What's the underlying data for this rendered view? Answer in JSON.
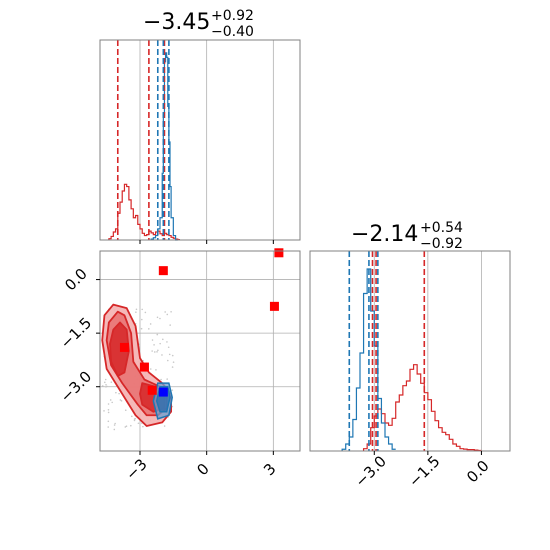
{
  "colors": {
    "red": "#d62728",
    "blue": "#1f77b4",
    "red_fill": "#f0a0a0",
    "marker_red": "#ff0000",
    "marker_blue": "#0000ff",
    "grid": "#b0b0b0"
  },
  "chart_data": {
    "type": "corner",
    "titles": [
      {
        "param": 0,
        "median": "−3.45",
        "plus": "+0.92",
        "minus": "−0.40"
      },
      {
        "param": 1,
        "median": "−2.14",
        "plus": "+0.54",
        "minus": "−0.92"
      }
    ],
    "x_range": [
      -4.8,
      4.2
    ],
    "y_range": [
      -4.8,
      0.8
    ],
    "x_ticks": [
      {
        "value": -3,
        "label": "−3"
      },
      {
        "value": 0,
        "label": "0"
      },
      {
        "value": 3,
        "label": "3"
      }
    ],
    "y_ticks": [
      {
        "value": 0,
        "label": "0.0"
      },
      {
        "value": -1.5,
        "label": "−1.5"
      },
      {
        "value": -3,
        "label": "−3.0"
      }
    ],
    "y_marginal_ticks": [
      {
        "value": -3,
        "label": "−3.0"
      },
      {
        "value": -1.5,
        "label": "−1.5"
      },
      {
        "value": 0,
        "label": "0.0"
      }
    ],
    "grid": true,
    "marginal_x": {
      "red_hist": {
        "bins": [
          -4.4,
          -4.3,
          -4.2,
          -4.1,
          -4.0,
          -3.9,
          -3.8,
          -3.7,
          -3.6,
          -3.5,
          -3.4,
          -3.3,
          -3.2,
          -3.1,
          -3.0,
          -2.9,
          -2.8,
          -2.7,
          -2.6,
          -2.5,
          -2.4,
          -2.3,
          -2.2,
          -2.1,
          -2.0,
          -1.9,
          -1.8,
          -1.7,
          -1.6,
          -1.5,
          -1.4,
          -1.3
        ],
        "counts": [
          0.3,
          0.8,
          1.8,
          2.5,
          6.0,
          8.5,
          11.0,
          12.5,
          12.0,
          9.0,
          7.0,
          5.0,
          5.5,
          3.5,
          2.5,
          1.5,
          1.0,
          1.2,
          2.0,
          1.6,
          1.2,
          1.8,
          2.0,
          1.4,
          1.0,
          1.5,
          1.2,
          1.0,
          0.6,
          0.4,
          0.2,
          0.1
        ]
      },
      "blue_hist": {
        "bins": [
          -2.5,
          -2.4,
          -2.3,
          -2.2,
          -2.1,
          -2.0,
          -1.95,
          -1.9,
          -1.85,
          -1.8,
          -1.75,
          -1.7,
          -1.65,
          -1.6,
          -1.5,
          -1.4
        ],
        "counts": [
          0.2,
          0.5,
          1.0,
          2.5,
          5.0,
          15.0,
          28.0,
          40.0,
          42.0,
          41.0,
          30.0,
          22.0,
          12.0,
          5.0,
          1.0,
          0.0
        ]
      },
      "ymax": 44,
      "red_quantiles": [
        -4.0,
        -2.6,
        -1.9
      ],
      "blue_quantiles": [
        -2.2,
        -1.95,
        -1.7
      ]
    },
    "marginal_y": {
      "red_hist": {
        "bins": [
          -3.3,
          -3.2,
          -3.1,
          -3.0,
          -2.9,
          -2.8,
          -2.7,
          -2.6,
          -2.5,
          -2.4,
          -2.3,
          -2.2,
          -2.1,
          -2.0,
          -1.9,
          -1.8,
          -1.7,
          -1.6,
          -1.5,
          -1.4,
          -1.3,
          -1.2,
          -1.1,
          -1.0,
          -0.9,
          -0.8,
          -0.7,
          -0.6,
          -0.5,
          -0.4,
          -0.3,
          -0.2,
          -0.1
        ],
        "counts": [
          0.5,
          1.5,
          5.0,
          7.5,
          9.0,
          8.0,
          6.0,
          5.5,
          7.0,
          10.5,
          12.0,
          14.0,
          15.0,
          17.5,
          18.5,
          16.5,
          14.5,
          12.5,
          11.0,
          8.5,
          6.5,
          5.0,
          4.0,
          3.5,
          2.5,
          1.5,
          1.0,
          0.5,
          0.4,
          0.3,
          0.3,
          0.2,
          0.1
        ]
      },
      "blue_hist": {
        "bins": [
          -3.9,
          -3.8,
          -3.7,
          -3.6,
          -3.5,
          -3.4,
          -3.3,
          -3.2,
          -3.1,
          -3.0,
          -2.9,
          -2.8,
          -2.7,
          -2.6,
          -2.5
        ],
        "counts": [
          0.5,
          2.0,
          4.0,
          9.0,
          18.0,
          28.0,
          45.0,
          52.0,
          40.0,
          30.0,
          15.0,
          8.0,
          4.0,
          2.0,
          0.5
        ]
      },
      "ymax": 56,
      "red_quantiles": [
        -3.05,
        -2.95,
        -1.6
      ],
      "blue_quantiles": [
        -3.7,
        -3.15,
        -2.9
      ]
    },
    "joint": {
      "red_contours": [
        {
          "level": "outer",
          "points": [
            [
              -4.6,
              -1.0
            ],
            [
              -4.2,
              -0.7
            ],
            [
              -3.6,
              -0.8
            ],
            [
              -3.2,
              -1.3
            ],
            [
              -3.0,
              -2.2
            ],
            [
              -2.6,
              -2.6
            ],
            [
              -2.0,
              -2.9
            ],
            [
              -1.6,
              -3.2
            ],
            [
              -1.6,
              -3.7
            ],
            [
              -2.0,
              -4.0
            ],
            [
              -2.7,
              -4.1
            ],
            [
              -3.2,
              -3.8
            ],
            [
              -3.9,
              -3.1
            ],
            [
              -4.5,
              -2.5
            ],
            [
              -4.7,
              -1.7
            ]
          ]
        },
        {
          "level": "middle",
          "points": [
            [
              -4.4,
              -1.2
            ],
            [
              -4.0,
              -0.9
            ],
            [
              -3.7,
              -1.0
            ],
            [
              -3.4,
              -1.5
            ],
            [
              -3.3,
              -2.3
            ],
            [
              -2.8,
              -2.8
            ],
            [
              -2.1,
              -3.0
            ],
            [
              -1.8,
              -3.3
            ],
            [
              -1.8,
              -3.6
            ],
            [
              -2.2,
              -3.8
            ],
            [
              -2.7,
              -3.8
            ],
            [
              -3.1,
              -3.5
            ],
            [
              -3.8,
              -2.9
            ],
            [
              -4.3,
              -2.4
            ],
            [
              -4.5,
              -1.7
            ]
          ]
        },
        {
          "level": "inner",
          "points": [
            [
              -4.2,
              -1.4
            ],
            [
              -3.9,
              -1.2
            ],
            [
              -3.6,
              -1.4
            ],
            [
              -3.5,
              -2.0
            ],
            [
              -3.7,
              -2.6
            ],
            [
              -4.0,
              -2.7
            ],
            [
              -4.3,
              -2.3
            ],
            [
              -4.35,
              -1.8
            ]
          ]
        },
        {
          "level": "inner2",
          "points": [
            [
              -2.9,
              -2.9
            ],
            [
              -2.3,
              -3.0
            ],
            [
              -1.9,
              -3.2
            ],
            [
              -1.9,
              -3.6
            ],
            [
              -2.4,
              -3.7
            ],
            [
              -2.9,
              -3.5
            ],
            [
              -3.0,
              -3.2
            ]
          ]
        }
      ],
      "blue_contours": [
        {
          "points": [
            [
              -2.2,
              -2.9
            ],
            [
              -1.7,
              -2.9
            ],
            [
              -1.55,
              -3.3
            ],
            [
              -1.7,
              -3.8
            ],
            [
              -2.2,
              -3.9
            ],
            [
              -2.4,
              -3.4
            ]
          ]
        },
        {
          "points": [
            [
              -2.1,
              -3.0
            ],
            [
              -1.75,
              -3.0
            ],
            [
              -1.65,
              -3.3
            ],
            [
              -1.8,
              -3.7
            ],
            [
              -2.1,
              -3.7
            ],
            [
              -2.25,
              -3.4
            ]
          ]
        }
      ],
      "red_markers": [
        [
          -1.95,
          0.25
        ],
        [
          3.25,
          0.75
        ],
        [
          3.05,
          -0.75
        ],
        [
          -3.7,
          -1.9
        ],
        [
          -2.8,
          -2.45
        ],
        [
          -2.45,
          -3.1
        ]
      ],
      "blue_markers": [
        [
          -1.95,
          -3.15
        ]
      ]
    }
  }
}
